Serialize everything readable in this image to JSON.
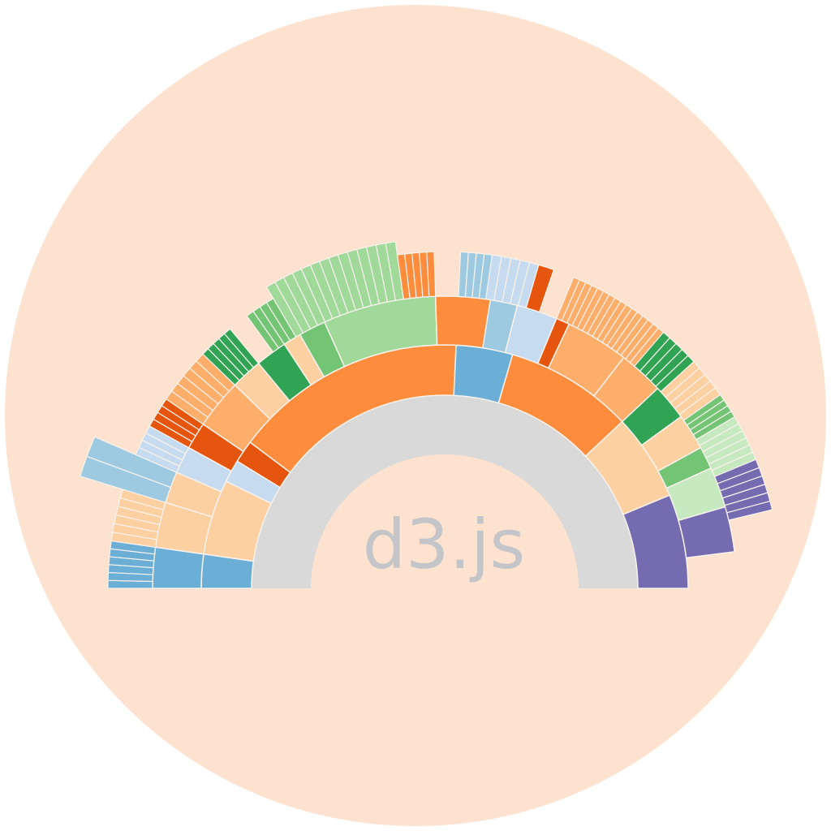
{
  "logo": {
    "text": "d3.js",
    "colors": {
      "page": "#ffffff",
      "disc": "#fde3cf",
      "text": "#c3c5c9",
      "core": "#d9d9d9",
      "separator": "#f7f2ec"
    }
  },
  "sunburst": {
    "chart_type": "partial sunburst (semicircle)",
    "core_ring": {
      "color": "#d9d9d9"
    },
    "rings": [
      {
        "ring": "inner",
        "segments": [
          {
            "name": "inner-segment-1",
            "share": 0.045,
            "color": "#6baed6"
          },
          {
            "name": "inner-segment-2",
            "share": 0.1,
            "color": "#fdd0a2"
          },
          {
            "name": "inner-segment-3",
            "share": 0.03,
            "color": "#c6dbef"
          },
          {
            "name": "inner-segment-4",
            "share": 0.03,
            "color": "#e6550d"
          },
          {
            "name": "inner-segment-5",
            "share": 0.31,
            "color": "#fd8d3c"
          },
          {
            "name": "inner-segment-6",
            "share": 0.075,
            "color": "#6baed6"
          },
          {
            "name": "inner-segment-7",
            "share": 0.17,
            "color": "#fd8d3c"
          },
          {
            "name": "inner-segment-8",
            "share": 0.115,
            "color": "#fdd0a2"
          },
          {
            "name": "inner-segment-9",
            "share": 0.125,
            "color": "#756bb1"
          }
        ]
      },
      {
        "ring": "middle",
        "segments": [
          {
            "name": "middle-segment-1",
            "share": 0.045,
            "color": "#6baed6"
          },
          {
            "name": "middle-segment-2",
            "share": 0.05,
            "color": "#fdd0a2"
          },
          {
            "name": "middle-segment-3",
            "share": 0.035,
            "color": "#fdd0a2"
          },
          {
            "name": "middle-segment-4",
            "share": 0.03,
            "color": "#c6dbef"
          },
          {
            "name": "middle-segment-5",
            "share": 0.03,
            "color": "#e6550d"
          },
          {
            "name": "middle-segment-6",
            "share": 0.055,
            "color": "#fdae6b"
          },
          {
            "name": "middle-segment-7",
            "share": 0.035,
            "color": "#fdd0a2"
          },
          {
            "name": "middle-segment-8",
            "share": 0.035,
            "color": "#31a354"
          },
          {
            "name": "middle-segment-9",
            "share": 0.02,
            "color": "#fdd0a2"
          },
          {
            "name": "middle-segment-10",
            "share": 0.03,
            "color": "#74c476"
          },
          {
            "name": "middle-segment-11",
            "share": 0.125,
            "color": "#a1d99b"
          },
          {
            "name": "middle-segment-12",
            "share": 0.06,
            "color": "#fd8d3c"
          },
          {
            "name": "middle-segment-13",
            "share": 0.03,
            "color": "#9ecae1"
          },
          {
            "name": "middle-segment-14",
            "share": 0.045,
            "color": "#c6dbef"
          },
          {
            "name": "middle-segment-15",
            "share": 0.015,
            "color": "#e6550d"
          },
          {
            "name": "middle-segment-16",
            "share": 0.07,
            "color": "#fdae6b"
          },
          {
            "name": "middle-segment-17",
            "share": 0.05,
            "color": "#fdae6b"
          },
          {
            "name": "middle-segment-18",
            "share": 0.04,
            "color": "#31a354"
          },
          {
            "name": "middle-segment-19",
            "share": 0.04,
            "color": "#fdd0a2"
          },
          {
            "name": "middle-segment-20",
            "share": 0.025,
            "color": "#74c476"
          },
          {
            "name": "middle-segment-21",
            "share": 0.045,
            "color": "#c7e9c0"
          },
          {
            "name": "middle-segment-22",
            "share": 0.05,
            "color": "#756bb1"
          }
        ]
      },
      {
        "ring": "outer",
        "segments": [
          {
            "name": "outer-segment-1",
            "start": 0.0,
            "end": 0.045,
            "depth": 1.0,
            "color": "#6baed6",
            "cells": 6
          },
          {
            "name": "outer-segment-2",
            "start": 0.045,
            "end": 0.095,
            "depth": 1.0,
            "color": "#fdd0a2",
            "cells": 6
          },
          {
            "name": "outer-segment-3",
            "start": 0.095,
            "end": 0.13,
            "depth": 1.0,
            "color": "#fdd0a2",
            "cells": 5
          },
          {
            "name": "outer-segment-4",
            "start": 0.095,
            "end": 0.13,
            "depth": 2.0,
            "color": "#9ecae1",
            "cells": 2
          },
          {
            "name": "outer-segment-5",
            "start": 0.13,
            "end": 0.16,
            "depth": 1.0,
            "color": "#c6dbef",
            "cells": 4
          },
          {
            "name": "outer-segment-6",
            "start": 0.16,
            "end": 0.19,
            "depth": 1.0,
            "color": "#e6550d",
            "cells": 4
          },
          {
            "name": "outer-segment-7",
            "start": 0.19,
            "end": 0.245,
            "depth": 1.0,
            "color": "#fdae6b",
            "cells": 6
          },
          {
            "name": "outer-segment-8",
            "start": 0.245,
            "end": 0.28,
            "depth": 1.0,
            "color": "#31a354",
            "cells": 5
          },
          {
            "name": "outer-segment-9",
            "start": 0.3,
            "end": 0.33,
            "depth": 1.0,
            "color": "#74c476",
            "cells": 4
          },
          {
            "name": "outer-segment-10",
            "start": 0.33,
            "end": 0.455,
            "depth": 1.3,
            "color": "#a1d99b",
            "cells": 14
          },
          {
            "name": "outer-segment-11",
            "start": 0.455,
            "end": 0.49,
            "depth": 1.0,
            "color": "#fd8d3c",
            "cells": 5
          },
          {
            "name": "outer-segment-12",
            "start": 0.515,
            "end": 0.545,
            "depth": 1.0,
            "color": "#9ecae1",
            "cells": 4
          },
          {
            "name": "outer-segment-13",
            "start": 0.545,
            "end": 0.59,
            "depth": 1.0,
            "color": "#c6dbef",
            "cells": 5
          },
          {
            "name": "outer-segment-14",
            "start": 0.59,
            "end": 0.605,
            "depth": 1.0,
            "color": "#e6550d",
            "cells": 1
          },
          {
            "name": "outer-segment-15",
            "start": 0.625,
            "end": 0.675,
            "depth": 1.0,
            "color": "#fdae6b",
            "cells": 8
          },
          {
            "name": "outer-segment-16",
            "start": 0.675,
            "end": 0.725,
            "depth": 1.0,
            "color": "#fdae6b",
            "cells": 8
          },
          {
            "name": "outer-segment-17",
            "start": 0.725,
            "end": 0.765,
            "depth": 1.0,
            "color": "#31a354",
            "cells": 5
          },
          {
            "name": "outer-segment-18",
            "start": 0.765,
            "end": 0.805,
            "depth": 1.0,
            "color": "#fdd0a2",
            "cells": 5
          },
          {
            "name": "outer-segment-19",
            "start": 0.805,
            "end": 0.83,
            "depth": 1.0,
            "color": "#74c476",
            "cells": 4
          },
          {
            "name": "outer-segment-20",
            "start": 0.83,
            "end": 0.875,
            "depth": 1.0,
            "color": "#c7e9c0",
            "cells": 6
          },
          {
            "name": "outer-segment-21",
            "start": 0.875,
            "end": 0.925,
            "depth": 1.0,
            "color": "#756bb1",
            "cells": 6
          }
        ]
      }
    ]
  }
}
